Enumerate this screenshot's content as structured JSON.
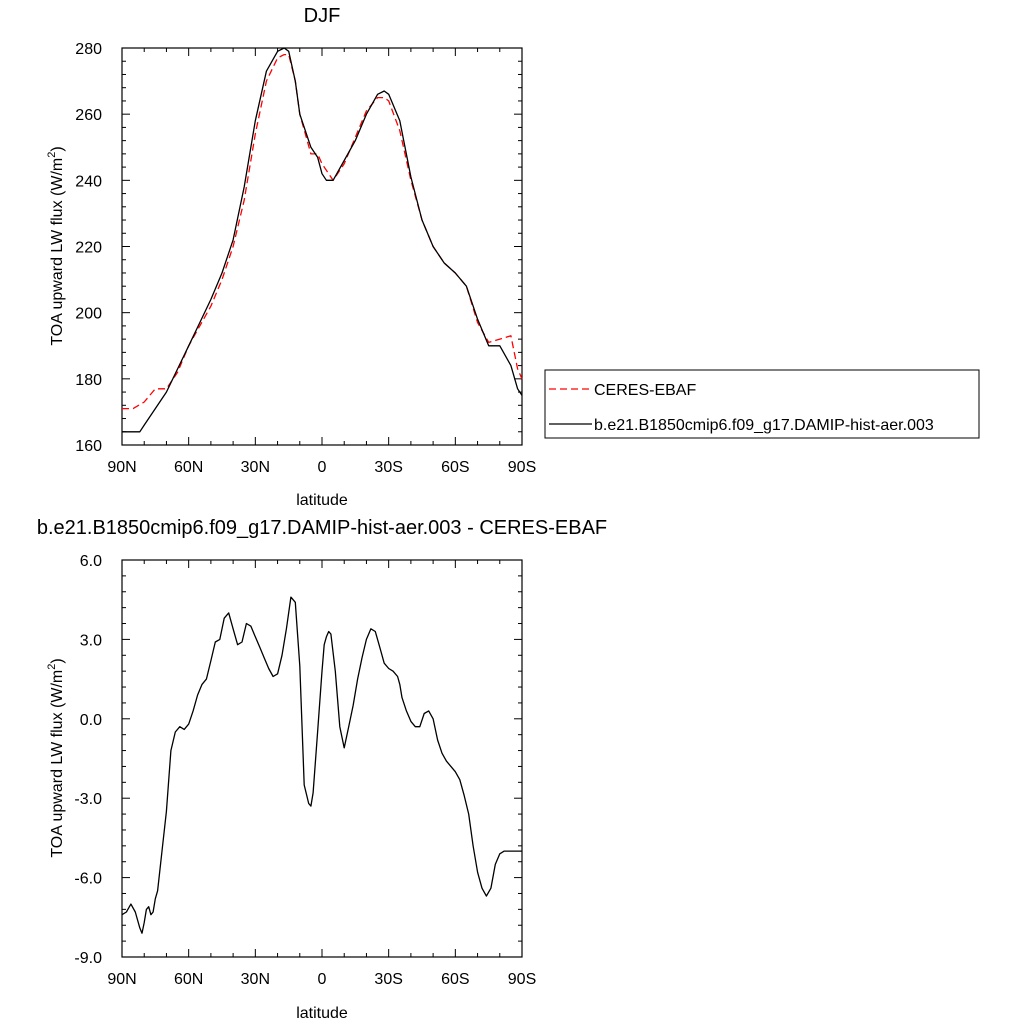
{
  "chart_data": [
    {
      "type": "line",
      "title": "DJF",
      "xlabel": "latitude",
      "ylabel": "TOA upward LW flux (W/m",
      "ylabel_sup": "2",
      "ylabel_end": ")",
      "xlim": [
        90,
        -90
      ],
      "ylim": [
        160,
        280
      ],
      "xticks": [
        {
          "value": 90,
          "label": "90N"
        },
        {
          "value": 60,
          "label": "60N"
        },
        {
          "value": 30,
          "label": "30N"
        },
        {
          "value": 0,
          "label": "0"
        },
        {
          "value": -30,
          "label": "30S"
        },
        {
          "value": -60,
          "label": "60S"
        },
        {
          "value": -90,
          "label": "90S"
        }
      ],
      "yticks": [
        {
          "value": 160,
          "label": "160"
        },
        {
          "value": 180,
          "label": "180"
        },
        {
          "value": 200,
          "label": "200"
        },
        {
          "value": 220,
          "label": "220"
        },
        {
          "value": 240,
          "label": "240"
        },
        {
          "value": 260,
          "label": "260"
        },
        {
          "value": 280,
          "label": "280"
        }
      ],
      "legend_position": "right",
      "series": [
        {
          "name": "CERES-EBAF",
          "color": "#ff0000",
          "style": "dashed",
          "x": [
            90,
            85,
            80,
            75,
            70,
            65,
            60,
            55,
            50,
            45,
            40,
            35,
            30,
            25,
            20,
            17,
            15,
            12,
            10,
            5,
            2,
            0,
            -5,
            -10,
            -15,
            -20,
            -25,
            -28,
            -30,
            -35,
            -40,
            -45,
            -50,
            -55,
            -60,
            -65,
            -70,
            -75,
            -80,
            -85,
            -88,
            -90
          ],
          "y": [
            171,
            171,
            173,
            177,
            177,
            182,
            190,
            196,
            202,
            210,
            220,
            234,
            254,
            270,
            277,
            278,
            278,
            270,
            260,
            248,
            248,
            245,
            240,
            245,
            253,
            261,
            265,
            265,
            264,
            255,
            240,
            228,
            220,
            215,
            212,
            208,
            197,
            191,
            192,
            193,
            183,
            180
          ]
        },
        {
          "name": "b.e21.B1850cmip6.f09_g17.DAMIP-hist-aer.003",
          "color": "#000000",
          "style": "solid",
          "x": [
            90,
            85,
            82,
            80,
            75,
            70,
            65,
            60,
            55,
            50,
            45,
            40,
            35,
            30,
            25,
            20,
            17,
            15,
            12,
            10,
            5,
            2,
            0,
            -2,
            -5,
            -10,
            -15,
            -20,
            -25,
            -28,
            -30,
            -35,
            -40,
            -45,
            -50,
            -55,
            -60,
            -65,
            -70,
            -75,
            -80,
            -85,
            -88,
            -90
          ],
          "y": [
            164,
            164,
            164,
            166,
            171,
            176,
            183,
            190,
            197,
            204,
            212,
            222,
            238,
            258,
            273,
            279,
            280,
            279,
            270,
            260,
            250,
            247,
            242,
            240,
            240,
            246,
            252,
            260,
            266,
            267,
            266,
            258,
            241,
            228,
            220,
            215,
            212,
            208,
            198,
            190,
            190,
            184,
            177,
            175
          ]
        }
      ]
    },
    {
      "type": "line",
      "title": "b.e21.B1850cmip6.f09_g17.DAMIP-hist-aer.003 - CERES-EBAF",
      "xlabel": "latitude",
      "ylabel": "TOA upward LW flux (W/m",
      "ylabel_sup": "2",
      "ylabel_end": ")",
      "xlim": [
        90,
        -90
      ],
      "ylim": [
        -9,
        6
      ],
      "xticks": [
        {
          "value": 90,
          "label": "90N"
        },
        {
          "value": 60,
          "label": "60N"
        },
        {
          "value": 30,
          "label": "30N"
        },
        {
          "value": 0,
          "label": "0"
        },
        {
          "value": -30,
          "label": "30S"
        },
        {
          "value": -60,
          "label": "60S"
        },
        {
          "value": -90,
          "label": "90S"
        }
      ],
      "yticks": [
        {
          "value": -9,
          "label": "-9.0"
        },
        {
          "value": -6,
          "label": "-6.0"
        },
        {
          "value": -3,
          "label": "-3.0"
        },
        {
          "value": 0,
          "label": "0.0"
        },
        {
          "value": 3,
          "label": "3.0"
        },
        {
          "value": 6,
          "label": "6.0"
        }
      ],
      "series": [
        {
          "name": "",
          "color": "#000000",
          "style": "solid",
          "x": [
            90,
            88,
            86,
            84,
            82,
            81,
            80,
            79,
            78,
            77,
            76,
            75,
            74,
            72,
            70,
            68,
            66,
            64,
            62,
            60,
            58,
            56,
            54,
            52,
            50,
            48,
            46,
            44,
            42,
            40,
            38,
            36,
            34,
            32,
            30,
            28,
            26,
            24,
            22,
            20,
            18,
            16,
            14,
            12,
            10,
            8,
            6,
            5,
            4,
            2,
            0,
            -1,
            -2,
            -3,
            -4,
            -6,
            -8,
            -10,
            -12,
            -14,
            -16,
            -18,
            -20,
            -22,
            -24,
            -26,
            -28,
            -30,
            -32,
            -34,
            -35,
            -36,
            -38,
            -40,
            -42,
            -44,
            -46,
            -48,
            -50,
            -52,
            -54,
            -56,
            -58,
            -60,
            -62,
            -64,
            -66,
            -68,
            -70,
            -72,
            -74,
            -76,
            -78,
            -80,
            -82,
            -84,
            -86,
            -87,
            -88,
            -89,
            -90
          ],
          "y": [
            -7.4,
            -7.3,
            -7.0,
            -7.3,
            -7.9,
            -8.1,
            -7.7,
            -7.2,
            -7.1,
            -7.4,
            -7.3,
            -6.8,
            -6.5,
            -5.0,
            -3.5,
            -1.2,
            -0.5,
            -0.3,
            -0.4,
            -0.2,
            0.3,
            0.9,
            1.3,
            1.5,
            2.2,
            2.9,
            3.0,
            3.8,
            4.0,
            3.4,
            2.8,
            2.9,
            3.6,
            3.5,
            3.1,
            2.7,
            2.3,
            1.9,
            1.6,
            1.7,
            2.4,
            3.4,
            4.6,
            4.4,
            2.0,
            -2.5,
            -3.2,
            -3.3,
            -2.8,
            -0.5,
            1.8,
            2.8,
            3.1,
            3.3,
            3.2,
            1.8,
            -0.3,
            -1.1,
            -0.3,
            0.5,
            1.5,
            2.3,
            3.0,
            3.4,
            3.3,
            2.7,
            2.1,
            1.9,
            1.8,
            1.6,
            1.3,
            0.8,
            0.3,
            -0.1,
            -0.3,
            -0.3,
            0.2,
            0.3,
            0.0,
            -0.8,
            -1.3,
            -1.6,
            -1.8,
            -2.0,
            -2.3,
            -2.9,
            -3.6,
            -4.8,
            -5.8,
            -6.4,
            -6.7,
            -6.4,
            -5.5,
            -5.1,
            -5.0,
            -5.0,
            -5.0,
            -5.0,
            -5.0,
            -5.0,
            -5.0
          ]
        }
      ]
    }
  ]
}
